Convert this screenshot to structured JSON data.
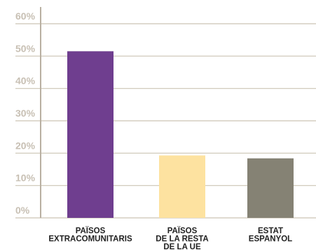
{
  "chart_data": {
    "type": "bar",
    "categories": [
      [
        "PAÏSOS",
        "EXTRACOMUNITARIS"
      ],
      [
        "PAÏSOS",
        "DE LA RESTA",
        "DE LA UE"
      ],
      [
        "ESTAT",
        "ESPANYOL"
      ]
    ],
    "values": [
      51.5,
      19.3,
      18.4
    ],
    "colors": [
      "#6f3e8f",
      "#fde2a0",
      "#858274"
    ],
    "ylim": [
      0,
      60
    ],
    "yticks": [
      0,
      10,
      20,
      30,
      40,
      50,
      60
    ],
    "ytick_labels": [
      "0%",
      "10%",
      "20%",
      "30%",
      "40%",
      "50%",
      "60%"
    ],
    "grid": true,
    "grid_color": "#ccc4b4",
    "axis_color": "#b9b0a2",
    "tick_label_color": "#c8c0b4"
  }
}
